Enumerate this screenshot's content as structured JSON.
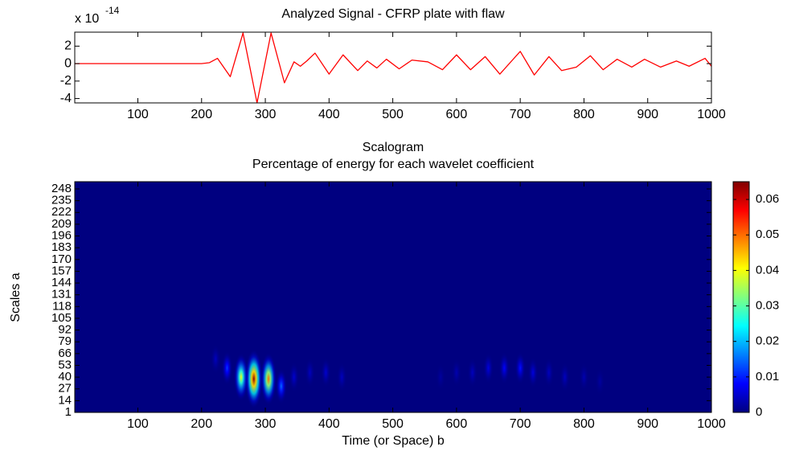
{
  "chart_data": [
    {
      "type": "line",
      "title": "Analyzed Signal - CFRP plate with flaw",
      "exponent_label": "x 10",
      "exponent": "-14",
      "x": [
        1,
        200,
        212,
        225,
        245,
        265,
        287,
        309,
        330,
        345,
        355,
        365,
        378,
        400,
        422,
        445,
        460,
        475,
        490,
        510,
        530,
        555,
        578,
        600,
        622,
        645,
        668,
        700,
        722,
        745,
        765,
        788,
        810,
        830,
        852,
        875,
        895,
        920,
        945,
        965,
        990,
        1000
      ],
      "series": [
        {
          "color": "#ff0000",
          "values": [
            0,
            0,
            0.1,
            0.6,
            -1.5,
            3.5,
            -4.5,
            3.5,
            -2.2,
            0.2,
            -0.3,
            0.3,
            1.2,
            -1.2,
            1.0,
            -0.8,
            0.3,
            -0.5,
            0.5,
            -0.6,
            0.4,
            0.2,
            -0.7,
            1.0,
            -0.7,
            0.8,
            -1.2,
            1.4,
            -1.3,
            0.8,
            -0.8,
            -0.4,
            0.9,
            -0.7,
            0.5,
            -0.4,
            0.5,
            -0.4,
            0.3,
            -0.3,
            0.6,
            -0.3
          ]
        }
      ],
      "xlim": [
        1,
        1000
      ],
      "xticks": [
        100,
        200,
        300,
        400,
        500,
        600,
        700,
        800,
        900,
        1000
      ],
      "ylim": [
        -4.5,
        3.6
      ],
      "yticks": [
        -4,
        -2,
        0,
        2
      ],
      "grid": false
    },
    {
      "type": "heatmap",
      "title": "Scalogram",
      "subtitle": "Percentage of energy for each wavelet coefficient",
      "xlabel": "Time (or Space) b",
      "ylabel": "Scales a",
      "colormap": "jet",
      "x": [
        222,
        240,
        262,
        282,
        305,
        325,
        345,
        370,
        395,
        420,
        575,
        600,
        625,
        650,
        675,
        700,
        720,
        745,
        770,
        800,
        825
      ],
      "y": [
        60,
        50,
        40,
        38,
        38,
        30,
        40,
        45,
        45,
        40,
        40,
        45,
        45,
        50,
        50,
        50,
        45,
        45,
        40,
        40,
        35
      ],
      "values": [
        0.004,
        0.012,
        0.04,
        0.064,
        0.05,
        0.015,
        0.005,
        0.004,
        0.005,
        0.004,
        0.002,
        0.003,
        0.004,
        0.006,
        0.008,
        0.009,
        0.006,
        0.004,
        0.004,
        0.003,
        0.002
      ],
      "xlim": [
        1,
        1000
      ],
      "xticks": [
        100,
        200,
        300,
        400,
        500,
        600,
        700,
        800,
        900,
        1000
      ],
      "ylim": [
        1,
        256
      ],
      "yticks": [
        1,
        14,
        27,
        40,
        53,
        66,
        79,
        92,
        105,
        118,
        131,
        144,
        157,
        170,
        183,
        196,
        209,
        222,
        235,
        248
      ],
      "clim": [
        0,
        0.065
      ],
      "cticks": [
        0,
        0.01,
        0.02,
        0.03,
        0.04,
        0.05,
        0.06
      ]
    }
  ]
}
